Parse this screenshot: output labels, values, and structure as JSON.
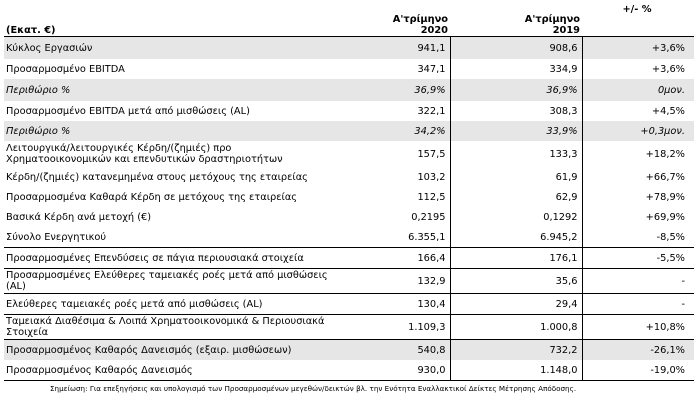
{
  "header": {
    "unit_label": "(Εκατ. €)",
    "col_2020": [
      "Α'τρίμηνο",
      "2020"
    ],
    "col_2019": [
      "Α'τρίμηνο",
      "2019"
    ],
    "col_change": "+/- %"
  },
  "rows": [
    {
      "label": "Κύκλος Εργασιών",
      "v2020": "941,1",
      "v2019": "908,6",
      "chg": "+3,6%"
    },
    {
      "label": "Προσαρμοσμένο EBITDA",
      "v2020": "347,1",
      "v2019": "334,9",
      "chg": "+3,6%"
    },
    {
      "label": "Περιθώριο %",
      "v2020": "36,9%",
      "v2019": "36,9%",
      "chg": "0μον."
    },
    {
      "label": "Προσαρμοσμένο EBITDA μετά από μισθώσεις (AL)",
      "v2020": "322,1",
      "v2019": "308,3",
      "chg": "+4,5%"
    },
    {
      "label": "Περιθώριο %",
      "v2020": "34,2%",
      "v2019": "33,9%",
      "chg": "+0,3μον."
    },
    {
      "label": "Λειτουργικά/λειτουργικές Κέρδη/(ζημιές) προ Χρηματοοικονομικών και επενδυτικών δραστηριοτήτων",
      "v2020": "157,5",
      "v2019": "133,3",
      "chg": "+18,2%"
    },
    {
      "label": "Κέρδη/(ζημιές) κατανεμημένα στους μετόχους της εταιρείας",
      "v2020": "103,2",
      "v2019": "61,9",
      "chg": "+66,7%"
    },
    {
      "label": "Προσαρμοσμένα Καθαρά Κέρδη σε μετόχους της εταιρείας",
      "v2020": "112,5",
      "v2019": "62,9",
      "chg": "+78,9%"
    },
    {
      "label": "Βασικά Κέρδη ανά μετοχή (€)",
      "v2020": "0,2195",
      "v2019": "0,1292",
      "chg": "+69,9%"
    },
    {
      "label": "Σύνολο Ενεργητικού",
      "v2020": "6.355,1",
      "v2019": "6.945,2",
      "chg": "-8,5%"
    },
    {
      "label": "Προσαρμοσμένες Επενδύσεις σε πάγια περιουσιακά στοιχεία",
      "v2020": "166,4",
      "v2019": "176,1",
      "chg": "-5,5%"
    },
    {
      "label": "Προσαρμοσμένες  Ελεύθερες ταμειακές ροές μετά από μισθώσεις (AL)",
      "v2020": "132,9",
      "v2019": "35,6",
      "chg": "-"
    },
    {
      "label": "Ελεύθερες ταμειακές ροές μετά από μισθώσεις (AL)",
      "v2020": "130,4",
      "v2019": "29,4",
      "chg": "-"
    },
    {
      "label": "Ταμειακά Διαθέσιμα & Λοιπά Χρηματοοικονομικά & Περιουσιακά Στοιχεία",
      "v2020": "1.109,3",
      "v2019": "1.000,8",
      "chg": "+10,8%"
    },
    {
      "label": "Προσαρμοσμένος Καθαρός Δανεισμός (εξαιρ. μισθώσεων)",
      "v2020": "540,8",
      "v2019": "732,2",
      "chg": "-26,1%"
    },
    {
      "label": "Προσαρμοσμένος Καθαρός Δανεισμός",
      "v2020": "930,0",
      "v2019": "1.148,0",
      "chg": "-19,0%"
    }
  ],
  "footnote": "Σημείωση: Για επεξηγήσεις και υπολογισμό των Προσαρμοσμένων μεγεθών/δεικτών βλ. την Ενότητα Εναλλακτικοί Δείκτες Μέτρησης Απόδοσης."
}
